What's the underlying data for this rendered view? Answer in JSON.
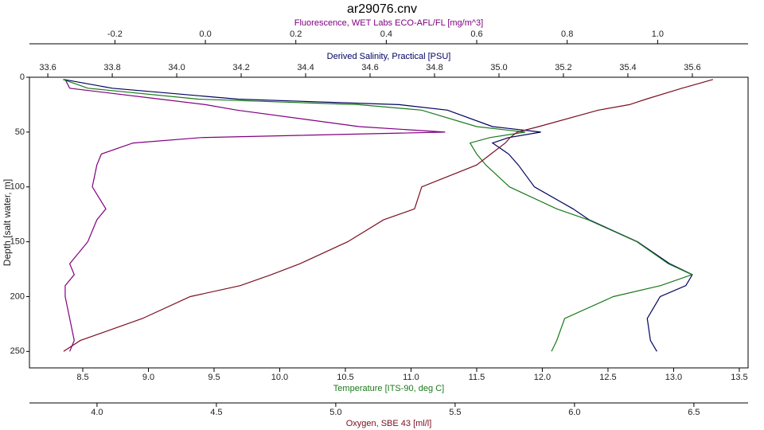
{
  "chart_data": {
    "type": "line",
    "title": "ar29076.cnv",
    "ylabel": "Depth [salt water, m]",
    "ylim": [
      0,
      265
    ],
    "y_inverted": true,
    "yticks": [
      0,
      50,
      100,
      150,
      200,
      250
    ],
    "y": [
      2,
      10,
      20,
      25,
      30,
      45,
      50,
      55,
      60,
      70,
      80,
      100,
      120,
      130,
      150,
      170,
      180,
      190,
      200,
      220,
      240,
      250
    ],
    "series": [
      {
        "name": "Fluorescence, WET Labs ECO-AFL/FL [mg/m^3]",
        "color": "#800080",
        "position": "top",
        "xlim": [
          -0.389,
          1.2
        ],
        "xticks": [
          -0.2,
          {
            "value": 0,
            "label": "0.0"
          },
          0.2,
          0.4,
          0.6,
          0.8,
          {
            "value": 1,
            "label": "1.0"
          }
        ],
        "values": [
          -0.31,
          -0.3,
          -0.1,
          0.0,
          0.07,
          0.34,
          0.53,
          -0.01,
          -0.16,
          -0.23,
          -0.24,
          -0.25,
          -0.22,
          -0.24,
          -0.26,
          -0.3,
          -0.29,
          -0.31,
          -0.31,
          -0.3,
          -0.29,
          -0.3
        ]
      },
      {
        "name": "Derived Salinity, Practical [PSU]",
        "color": "#000060",
        "position": "top",
        "xlim": [
          33.543,
          35.773
        ],
        "xticks": [
          33.6,
          33.8,
          {
            "value": 34,
            "label": "34.0"
          },
          34.2,
          34.4,
          34.6,
          34.8,
          {
            "value": 35,
            "label": "35.0"
          },
          35.2,
          35.4,
          35.6
        ],
        "values": [
          33.65,
          33.8,
          34.19,
          34.69,
          34.84,
          34.98,
          35.13,
          35.03,
          34.98,
          35.03,
          35.06,
          35.11,
          35.23,
          35.28,
          35.43,
          35.53,
          35.6,
          35.58,
          35.5,
          35.46,
          35.47,
          35.49
        ]
      },
      {
        "name": "Temperature [ITS-90, deg C]",
        "color": "#1a7a1a",
        "position": "bottom",
        "xlim": [
          8.094,
          13.567
        ],
        "xticks": [
          8.5,
          {
            "value": 9,
            "label": "9.0"
          },
          9.5,
          {
            "value": 10,
            "label": "10.0"
          },
          10.5,
          {
            "value": 11,
            "label": "11.0"
          },
          11.5,
          {
            "value": 12,
            "label": "12.0"
          },
          12.5,
          {
            "value": 13,
            "label": "13.0"
          },
          13.5
        ],
        "values": [
          8.35,
          8.54,
          9.38,
          10.6,
          11.08,
          11.5,
          11.87,
          11.6,
          11.45,
          11.5,
          11.57,
          11.75,
          12.11,
          12.35,
          12.72,
          12.96,
          13.14,
          12.9,
          12.54,
          12.17,
          12.11,
          12.07
        ]
      },
      {
        "name": "Oxygen, SBE 43 [ml/l]",
        "color": "#7a1020",
        "position": "bottom",
        "xlim": [
          3.717,
          6.727
        ],
        "xticks": [
          {
            "value": 4,
            "label": "4.0"
          },
          4.5,
          {
            "value": 5,
            "label": "5.0"
          },
          5.5,
          {
            "value": 6,
            "label": "6.0"
          },
          6.5
        ],
        "values": [
          6.58,
          6.45,
          6.3,
          6.23,
          6.1,
          5.85,
          5.76,
          5.73,
          5.71,
          5.65,
          5.59,
          5.36,
          5.33,
          5.2,
          5.05,
          4.85,
          4.73,
          4.6,
          4.39,
          4.19,
          3.93,
          3.86
        ]
      }
    ]
  }
}
